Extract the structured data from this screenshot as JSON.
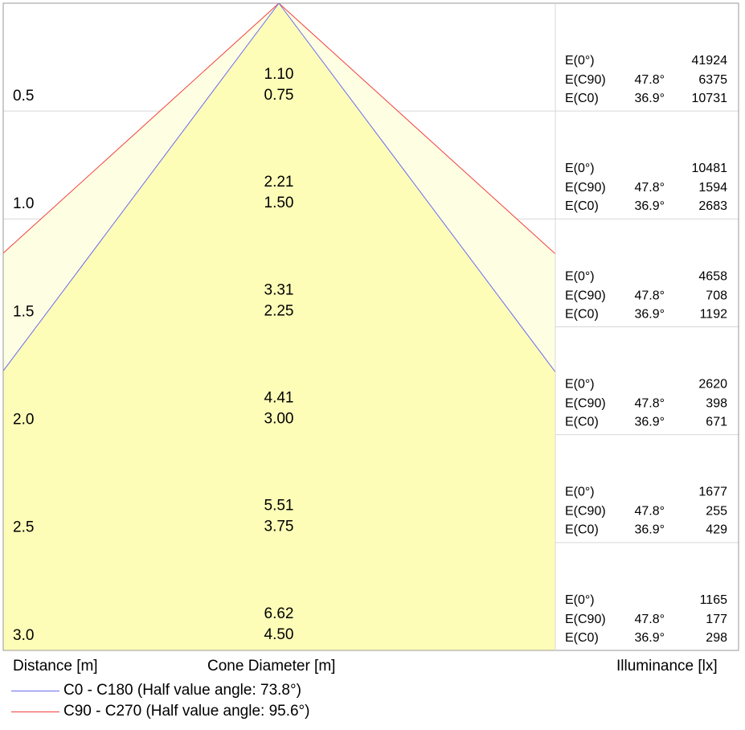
{
  "colors": {
    "cone_inner_fill": "#fdfdb8",
    "cone_outer_fill": "#fefee2",
    "c0_line": "#6b6bf0",
    "c90_line": "#f04040",
    "grid": "#d8d8d8",
    "frame": "#999999"
  },
  "axis_labels": {
    "distance": "Distance [m]",
    "cone_diameter": "Cone Diameter [m]",
    "illuminance": "Illuminance [lx]"
  },
  "legend": [
    {
      "key": "c0",
      "label": "C0 - C180 (Half value angle: 73.8°)",
      "color": "#6b6bf0"
    },
    {
      "key": "c90",
      "label": "C90 - C270 (Half value angle: 95.6°)",
      "color": "#f04040"
    }
  ],
  "chart_data": {
    "type": "table",
    "max_distance": 3.0,
    "rows": [
      {
        "distance": "0.5",
        "d_value": 0.5,
        "cone_c90": "1.10",
        "cone_c0": "0.75",
        "e0_label": "E(0°)",
        "e0_value": "41924",
        "ec90_label": "E(C90)",
        "ec90_angle": "47.8°",
        "ec90_value": "6375",
        "ec0_label": "E(C0)",
        "ec0_angle": "36.9°",
        "ec0_value": "10731"
      },
      {
        "distance": "1.0",
        "d_value": 1.0,
        "cone_c90": "2.21",
        "cone_c0": "1.50",
        "e0_label": "E(0°)",
        "e0_value": "10481",
        "ec90_label": "E(C90)",
        "ec90_angle": "47.8°",
        "ec90_value": "1594",
        "ec0_label": "E(C0)",
        "ec0_angle": "36.9°",
        "ec0_value": "2683"
      },
      {
        "distance": "1.5",
        "d_value": 1.5,
        "cone_c90": "3.31",
        "cone_c0": "2.25",
        "e0_label": "E(0°)",
        "e0_value": "4658",
        "ec90_label": "E(C90)",
        "ec90_angle": "47.8°",
        "ec90_value": "708",
        "ec0_label": "E(C0)",
        "ec0_angle": "36.9°",
        "ec0_value": "1192"
      },
      {
        "distance": "2.0",
        "d_value": 2.0,
        "cone_c90": "4.41",
        "cone_c0": "3.00",
        "e0_label": "E(0°)",
        "e0_value": "2620",
        "ec90_label": "E(C90)",
        "ec90_angle": "47.8°",
        "ec90_value": "398",
        "ec0_label": "E(C0)",
        "ec0_angle": "36.9°",
        "ec0_value": "671"
      },
      {
        "distance": "2.5",
        "d_value": 2.5,
        "cone_c90": "5.51",
        "cone_c0": "3.75",
        "e0_label": "E(0°)",
        "e0_value": "1677",
        "ec90_label": "E(C90)",
        "ec90_angle": "47.8°",
        "ec90_value": "255",
        "ec0_label": "E(C0)",
        "ec0_angle": "36.9°",
        "ec0_value": "429"
      },
      {
        "distance": "3.0",
        "d_value": 3.0,
        "cone_c90": "6.62",
        "cone_c0": "4.50",
        "e0_label": "E(0°)",
        "e0_value": "1165",
        "ec90_label": "E(C90)",
        "ec90_angle": "47.8°",
        "ec90_value": "177",
        "ec0_label": "E(C0)",
        "ec0_angle": "36.9°",
        "ec0_value": "298"
      }
    ]
  }
}
